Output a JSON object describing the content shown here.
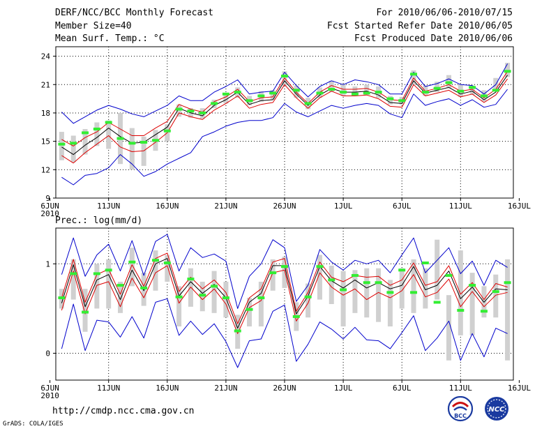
{
  "header": {
    "title": "DERF/NCC/BCC Monthly Forecast",
    "member_size": "Member Size=40",
    "variable": "Mean Surf. Temp.: °C",
    "period": "For 2010/06/06-2010/07/15",
    "started": "Fcst Started Refer Date 2010/06/05",
    "produced": "Fcst Produced Date 2010/06/06"
  },
  "footer": {
    "url": "http://cmdp.ncc.cma.gov.cn",
    "credit": "GrADS: COLA/IGES",
    "logo1": "BCC",
    "logo2": "NCC"
  },
  "colors": {
    "box": "#d0d0d0",
    "median": "#33ee33",
    "envelope": "#0000cc",
    "quantile": "#dd0000",
    "mean": "#000000"
  },
  "chart_data": [
    {
      "type": "line",
      "name": "temperature",
      "title": "Mean Surf. Temp.: °C",
      "ylabel": "°C",
      "ylim": [
        9,
        25
      ],
      "yticks": [
        9,
        12,
        15,
        18,
        21,
        24
      ],
      "xlim": [
        0.5,
        39.5
      ],
      "xticks": [
        {
          "x": 0,
          "label": "6JUN"
        },
        {
          "x": 5,
          "label": "11JUN"
        },
        {
          "x": 10,
          "label": "16JUN"
        },
        {
          "x": 15,
          "label": "21JUN"
        },
        {
          "x": 20,
          "label": "26JUN"
        },
        {
          "x": 25,
          "label": "1JUL"
        },
        {
          "x": 30,
          "label": "6JUL"
        },
        {
          "x": 35,
          "label": "11JUL"
        },
        {
          "x": 40,
          "label": "16JUL"
        }
      ],
      "year_label": "2010",
      "days": [
        1,
        2,
        3,
        4,
        5,
        6,
        7,
        8,
        9,
        10,
        11,
        12,
        13,
        14,
        15,
        16,
        17,
        18,
        19,
        20,
        21,
        22,
        23,
        24,
        25,
        26,
        27,
        28,
        29,
        30,
        31,
        32,
        33,
        34,
        35,
        36,
        37,
        38,
        39
      ],
      "series": [
        {
          "name": "upper envelope",
          "values": [
            18.1,
            16.9,
            17.6,
            18.3,
            18.8,
            18.4,
            17.9,
            17.6,
            18.2,
            18.8,
            19.8,
            19.3,
            19.3,
            20.2,
            20.8,
            21.5,
            20.0,
            20.2,
            20.3,
            22.3,
            20.9,
            19.7,
            20.8,
            21.4,
            21.0,
            21.5,
            21.3,
            21.0,
            20.0,
            20.0,
            22.3,
            20.8,
            21.1,
            21.6,
            21.0,
            20.9,
            20.0,
            21.0,
            23.2
          ]
        },
        {
          "name": "upper quantile",
          "values": [
            15.2,
            14.5,
            15.4,
            16.0,
            17.0,
            16.3,
            15.6,
            15.6,
            16.4,
            17.1,
            18.9,
            18.4,
            18.1,
            19.2,
            19.7,
            20.5,
            19.2,
            19.6,
            19.7,
            21.7,
            20.2,
            19.0,
            20.2,
            20.9,
            20.5,
            20.5,
            20.6,
            20.2,
            19.4,
            19.3,
            21.7,
            20.3,
            20.6,
            21.0,
            20.3,
            20.5,
            19.6,
            20.5,
            22.4
          ]
        },
        {
          "name": "ensemble mean",
          "values": [
            14.4,
            13.6,
            14.6,
            15.4,
            16.4,
            15.5,
            14.8,
            14.9,
            15.7,
            16.5,
            18.5,
            18.0,
            17.7,
            18.8,
            19.4,
            20.2,
            18.9,
            19.3,
            19.4,
            21.4,
            20.0,
            18.8,
            19.9,
            20.6,
            20.2,
            20.2,
            20.3,
            19.9,
            19.1,
            19.0,
            21.4,
            20.1,
            20.4,
            20.7,
            20.0,
            20.3,
            19.4,
            20.2,
            22.0
          ]
        },
        {
          "name": "lower quantile",
          "values": [
            13.5,
            12.7,
            13.8,
            14.7,
            15.6,
            14.4,
            13.9,
            14.0,
            14.9,
            15.9,
            18.0,
            17.6,
            17.3,
            18.3,
            19.0,
            19.8,
            18.5,
            18.9,
            19.1,
            21.0,
            19.6,
            18.5,
            19.6,
            20.3,
            19.8,
            19.8,
            19.9,
            19.5,
            18.7,
            18.6,
            21.0,
            19.8,
            20.1,
            20.4,
            19.7,
            20.0,
            19.1,
            19.9,
            21.6
          ]
        },
        {
          "name": "lower envelope",
          "values": [
            11.2,
            10.4,
            11.4,
            11.6,
            12.2,
            13.6,
            12.6,
            11.3,
            11.8,
            12.6,
            13.2,
            13.8,
            15.5,
            16.0,
            16.6,
            17.0,
            17.2,
            17.2,
            17.5,
            19.0,
            18.1,
            17.6,
            18.2,
            18.8,
            18.5,
            18.8,
            19.0,
            18.8,
            17.9,
            17.5,
            20.0,
            18.8,
            19.2,
            19.5,
            18.8,
            19.4,
            18.6,
            18.9,
            20.5
          ]
        }
      ],
      "boxes": [
        {
          "low": 13.0,
          "high": 16.0
        },
        {
          "low": 12.8,
          "high": 15.6
        },
        {
          "low": 13.6,
          "high": 16.3
        },
        {
          "low": 14.5,
          "high": 17.0
        },
        {
          "low": 14.2,
          "high": 17.2
        },
        {
          "low": 12.6,
          "high": 18.0
        },
        {
          "low": 12.0,
          "high": 16.4
        },
        {
          "low": 12.4,
          "high": 15.5
        },
        {
          "low": 14.0,
          "high": 16.2
        },
        {
          "low": 15.0,
          "high": 16.8
        },
        {
          "low": 17.6,
          "high": 18.9
        },
        {
          "low": 17.5,
          "high": 18.5
        },
        {
          "low": 17.4,
          "high": 18.5
        },
        {
          "low": 18.5,
          "high": 19.4
        },
        {
          "low": 19.0,
          "high": 20.1
        },
        {
          "low": 19.6,
          "high": 20.7
        },
        {
          "low": 18.8,
          "high": 19.8
        },
        {
          "low": 19.2,
          "high": 20.3
        },
        {
          "low": 19.4,
          "high": 20.4
        },
        {
          "low": 20.9,
          "high": 22.4
        },
        {
          "low": 19.6,
          "high": 20.9
        },
        {
          "low": 18.4,
          "high": 19.6
        },
        {
          "low": 19.6,
          "high": 20.7
        },
        {
          "low": 20.2,
          "high": 21.4
        },
        {
          "low": 19.8,
          "high": 21.0
        },
        {
          "low": 19.8,
          "high": 20.8
        },
        {
          "low": 19.9,
          "high": 21.0
        },
        {
          "low": 19.6,
          "high": 20.8
        },
        {
          "low": 18.9,
          "high": 19.8
        },
        {
          "low": 18.9,
          "high": 19.7
        },
        {
          "low": 21.0,
          "high": 22.5
        },
        {
          "low": 19.8,
          "high": 20.9
        },
        {
          "low": 20.2,
          "high": 21.3
        },
        {
          "low": 20.6,
          "high": 22.0
        },
        {
          "low": 19.7,
          "high": 21.0
        },
        {
          "low": 19.9,
          "high": 20.9
        },
        {
          "low": 19.2,
          "high": 20.4
        },
        {
          "low": 20.3,
          "high": 21.7
        },
        {
          "low": 21.8,
          "high": 23.3
        }
      ],
      "medians": [
        14.7,
        14.8,
        15.9,
        16.3,
        17.0,
        15.3,
        14.8,
        14.9,
        15.1,
        16.1,
        18.4,
        18.2,
        18.0,
        19.0,
        20.0,
        20.2,
        19.3,
        19.8,
        20.1,
        21.9,
        20.4,
        19.0,
        20.1,
        20.5,
        20.2,
        20.0,
        20.1,
        20.2,
        19.5,
        19.3,
        22.1,
        20.2,
        20.6,
        21.2,
        20.3,
        20.7,
        19.8,
        20.4,
        22.4
      ]
    },
    {
      "type": "line",
      "name": "precipitation",
      "title": "Prec.: log(mm/d)",
      "ylabel": "log(mm/d)",
      "ylim": [
        -0.3,
        1.4
      ],
      "yticks": [
        0,
        1
      ],
      "xlim": [
        0.5,
        39.5
      ],
      "xticks": [
        {
          "x": 0,
          "label": "6JUN"
        },
        {
          "x": 5,
          "label": "11JUN"
        },
        {
          "x": 10,
          "label": "16JUN"
        },
        {
          "x": 15,
          "label": "21JUN"
        },
        {
          "x": 20,
          "label": "26JUN"
        },
        {
          "x": 25,
          "label": "1JUL"
        },
        {
          "x": 30,
          "label": "6JUL"
        },
        {
          "x": 35,
          "label": "11JUL"
        },
        {
          "x": 40,
          "label": "16JUL"
        }
      ],
      "year_label": "2010",
      "days": [
        1,
        2,
        3,
        4,
        5,
        6,
        7,
        8,
        9,
        10,
        11,
        12,
        13,
        14,
        15,
        16,
        17,
        18,
        19,
        20,
        21,
        22,
        23,
        24,
        25,
        26,
        27,
        28,
        29,
        30,
        31,
        32,
        33,
        34,
        35,
        36,
        37,
        38,
        39
      ],
      "series": [
        {
          "name": "upper envelope",
          "values": [
            0.88,
            1.29,
            0.86,
            1.1,
            1.22,
            0.92,
            1.26,
            0.87,
            1.25,
            1.33,
            0.92,
            1.18,
            1.07,
            1.11,
            1.03,
            0.5,
            0.86,
            1.0,
            1.27,
            1.18,
            0.58,
            0.76,
            1.16,
            1.02,
            0.93,
            1.04,
            1.0,
            1.04,
            0.9,
            1.1,
            1.29,
            0.9,
            1.04,
            1.18,
            0.89,
            1.03,
            0.76,
            1.04,
            0.96
          ]
        },
        {
          "name": "upper quantile",
          "values": [
            0.62,
            1.05,
            0.57,
            0.88,
            0.94,
            0.66,
            0.99,
            0.75,
            1.06,
            1.12,
            0.69,
            0.85,
            0.72,
            0.82,
            0.68,
            0.33,
            0.62,
            0.72,
            1.02,
            1.06,
            0.47,
            0.68,
            1.02,
            0.85,
            0.8,
            0.87,
            0.85,
            0.86,
            0.76,
            0.82,
            1.01,
            0.76,
            0.8,
            0.98,
            0.66,
            0.79,
            0.6,
            0.78,
            0.74
          ]
        },
        {
          "name": "ensemble mean",
          "values": [
            0.56,
            0.99,
            0.52,
            0.82,
            0.88,
            0.6,
            0.93,
            0.7,
            1.0,
            1.06,
            0.64,
            0.8,
            0.67,
            0.77,
            0.62,
            0.28,
            0.57,
            0.67,
            0.98,
            0.98,
            0.44,
            0.64,
            0.97,
            0.81,
            0.73,
            0.82,
            0.73,
            0.79,
            0.72,
            0.76,
            0.97,
            0.71,
            0.76,
            0.92,
            0.61,
            0.74,
            0.57,
            0.72,
            0.71
          ]
        },
        {
          "name": "lower quantile",
          "values": [
            0.48,
            0.92,
            0.44,
            0.76,
            0.8,
            0.52,
            0.84,
            0.62,
            0.9,
            0.98,
            0.56,
            0.74,
            0.6,
            0.72,
            0.55,
            0.22,
            0.51,
            0.59,
            0.9,
            0.93,
            0.36,
            0.56,
            0.9,
            0.74,
            0.65,
            0.72,
            0.6,
            0.68,
            0.62,
            0.7,
            0.88,
            0.63,
            0.68,
            0.83,
            0.52,
            0.69,
            0.52,
            0.65,
            0.68
          ]
        },
        {
          "name": "lower envelope",
          "values": [
            0.05,
            0.55,
            0.03,
            0.37,
            0.35,
            0.18,
            0.41,
            0.17,
            0.57,
            0.61,
            0.2,
            0.36,
            0.21,
            0.33,
            0.13,
            -0.16,
            0.14,
            0.16,
            0.47,
            0.54,
            -0.09,
            0.1,
            0.35,
            0.27,
            0.16,
            0.29,
            0.15,
            0.14,
            0.05,
            0.23,
            0.42,
            0.03,
            0.17,
            0.36,
            -0.08,
            0.22,
            -0.04,
            0.28,
            0.22
          ]
        }
      ],
      "boxes": [
        {
          "low": 0.5,
          "high": 0.72
        },
        {
          "low": 0.6,
          "high": 1.05
        },
        {
          "low": 0.24,
          "high": 0.72
        },
        {
          "low": 0.5,
          "high": 1.0
        },
        {
          "low": 0.5,
          "high": 1.05
        },
        {
          "low": 0.45,
          "high": 0.8
        },
        {
          "low": 0.75,
          "high": 1.18
        },
        {
          "low": 0.53,
          "high": 0.9
        },
        {
          "low": 0.7,
          "high": 1.15
        },
        {
          "low": 0.8,
          "high": 1.1
        },
        {
          "low": 0.3,
          "high": 0.75
        },
        {
          "low": 0.52,
          "high": 0.95
        },
        {
          "low": 0.47,
          "high": 0.8
        },
        {
          "low": 0.45,
          "high": 0.92
        },
        {
          "low": 0.4,
          "high": 0.8
        },
        {
          "low": 0.05,
          "high": 0.43
        },
        {
          "low": 0.3,
          "high": 0.62
        },
        {
          "low": 0.3,
          "high": 0.8
        },
        {
          "low": 0.7,
          "high": 1.05
        },
        {
          "low": 0.73,
          "high": 1.08
        },
        {
          "low": 0.25,
          "high": 0.57
        },
        {
          "low": 0.4,
          "high": 0.78
        },
        {
          "low": 0.6,
          "high": 1.1
        },
        {
          "low": 0.55,
          "high": 0.98
        },
        {
          "low": 0.3,
          "high": 0.92
        },
        {
          "low": 0.45,
          "high": 0.93
        },
        {
          "low": 0.4,
          "high": 0.95
        },
        {
          "low": 0.35,
          "high": 0.95
        },
        {
          "low": 0.3,
          "high": 0.82
        },
        {
          "low": 0.5,
          "high": 0.95
        },
        {
          "low": 0.45,
          "high": 1.05
        },
        {
          "low": 0.5,
          "high": 0.95
        },
        {
          "low": 0.6,
          "high": 1.27
        },
        {
          "low": -0.08,
          "high": 0.65
        },
        {
          "low": 0.2,
          "high": 1.15
        },
        {
          "low": 0.2,
          "high": 0.9
        },
        {
          "low": 0.4,
          "high": 0.75
        },
        {
          "low": 0.4,
          "high": 0.88
        },
        {
          "low": -0.08,
          "high": 1.05
        }
      ],
      "medians": [
        0.62,
        0.89,
        0.46,
        0.89,
        0.93,
        0.76,
        1.02,
        0.73,
        1.04,
        1.01,
        0.63,
        0.83,
        0.65,
        0.75,
        0.62,
        0.25,
        0.49,
        0.62,
        0.9,
        0.97,
        0.41,
        0.63,
        0.97,
        0.82,
        0.71,
        0.87,
        0.79,
        0.79,
        0.68,
        0.93,
        0.68,
        1.01,
        0.57,
        0.87,
        0.48,
        0.76,
        0.47,
        0.69,
        0.79
      ]
    }
  ]
}
